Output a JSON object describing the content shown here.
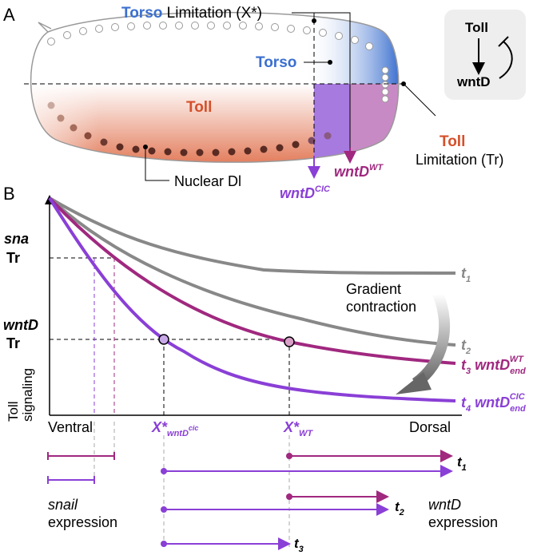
{
  "panel_a": {
    "label": "A",
    "torso_limitation": {
      "torso": "Torso",
      "rest": "Limitation (X*)"
    },
    "torso_label": "Torso",
    "toll_label": "Toll",
    "toll_limitation": {
      "toll": "Toll",
      "rest": "Limitation (Tr)"
    },
    "nuclear_dl": "Nuclear Dl",
    "wntd_wt": {
      "base": "wntD",
      "sup": "WT"
    },
    "wntd_cic": {
      "base": "wntD",
      "sup": "CIC"
    },
    "inset": {
      "top": "Toll",
      "bottom": "wntD"
    }
  },
  "panel_b": {
    "label": "B",
    "y_axis_label": {
      "line1": "Toll",
      "line2": "signaling"
    },
    "thresholds": [
      {
        "name": "sna",
        "tr": "Tr"
      },
      {
        "name": "wntD",
        "tr": "Tr"
      }
    ],
    "curves": [
      {
        "t": "t",
        "sub": "1"
      },
      {
        "t": "t",
        "sub": "2"
      },
      {
        "t": "t",
        "sub": "3",
        "gene": "wntD",
        "gene_sub": "end",
        "gene_sup": "WT"
      },
      {
        "t": "t",
        "sub": "4",
        "gene": "wntD",
        "gene_sub": "end",
        "gene_sup": "CIC"
      }
    ],
    "annotation": {
      "line1": "Gradient",
      "line2": "contraction"
    },
    "x_labels": {
      "ventral": "Ventral",
      "dorsal": "Dorsal",
      "x_cic": {
        "base": "X*",
        "sub": "wntD",
        "subsup": "cic"
      },
      "x_wt": {
        "base": "X*",
        "sub": "WT"
      }
    },
    "expression": {
      "arrows": [
        {
          "t": "t",
          "sub": "1"
        },
        {
          "t": "t",
          "sub": "2"
        },
        {
          "t": "t",
          "sub": "3"
        }
      ],
      "snail": {
        "gene": "snail",
        "word": "expression"
      },
      "wntd": {
        "gene": "wntD",
        "word": "expression"
      }
    }
  }
}
